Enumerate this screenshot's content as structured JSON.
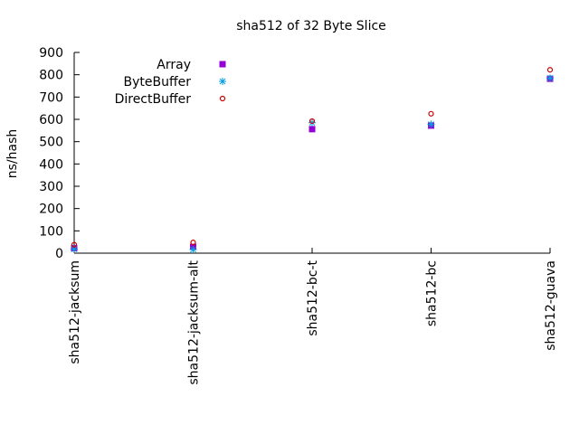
{
  "chart_data": {
    "type": "scatter",
    "title": "sha512 of 32 Byte Slice",
    "xlabel": "",
    "ylabel": "ns/hash",
    "ylim": [
      0,
      900
    ],
    "yticks": [
      0,
      100,
      200,
      300,
      400,
      500,
      600,
      700,
      800,
      900
    ],
    "categories": [
      "sha512-jacksum",
      "sha512-jacksum-alt",
      "sha512-bc-t",
      "sha512-bc",
      "sha512-guava"
    ],
    "grid": false,
    "legend_position": "top-left",
    "series": [
      {
        "name": "Array",
        "marker": "filled-square",
        "color": "#9400d3",
        "values": [
          22,
          28,
          556,
          572,
          782
        ]
      },
      {
        "name": "ByteBuffer",
        "marker": "asterisk",
        "color": "#009ee0",
        "values": [
          18,
          16,
          585,
          578,
          785
        ]
      },
      {
        "name": "DirectBuffer",
        "marker": "open-circle",
        "color": "#cc0000",
        "values": [
          38,
          48,
          592,
          625,
          822
        ]
      }
    ]
  }
}
